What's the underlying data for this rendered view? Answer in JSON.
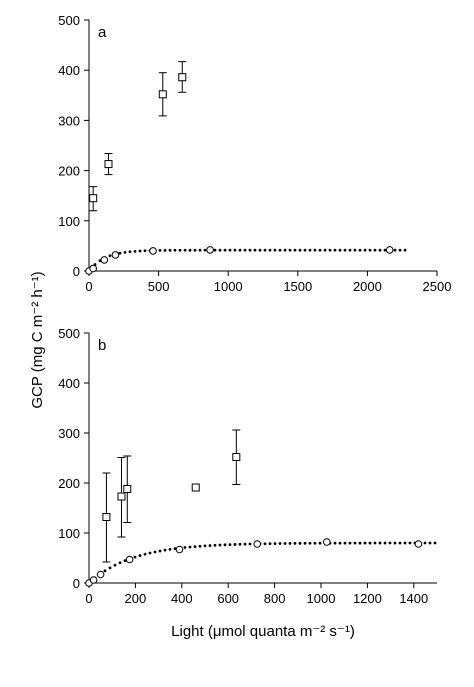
{
  "shared_ylabel": "GCP (mg C m⁻² h⁻¹)",
  "chart_data": [
    {
      "type": "scatter",
      "panel_label": "a",
      "xlabel": "",
      "ylabel": "GCP (mg C m⁻² h⁻¹)",
      "xlim": [
        0,
        2500
      ],
      "ylim": [
        0,
        500
      ],
      "x_ticks": [
        "0",
        "500",
        "1000",
        "1500",
        "2000",
        "2500"
      ],
      "y_ticks": [
        "0",
        "100",
        "200",
        "300",
        "400",
        "500"
      ],
      "grid": false,
      "series": [
        {
          "marker": "square",
          "points": [
            {
              "x": 30,
              "y": 145,
              "err_low": 120,
              "err_high": 168
            },
            {
              "x": 140,
              "y": 213,
              "err_low": 192,
              "err_high": 234
            },
            {
              "x": 530,
              "y": 352,
              "err_low": 309,
              "err_high": 395
            },
            {
              "x": 670,
              "y": 386,
              "err_low": 356,
              "err_high": 417
            }
          ]
        },
        {
          "marker": "circle",
          "points": [
            {
              "x": 0,
              "y": 0
            },
            {
              "x": 30,
              "y": 5
            },
            {
              "x": 110,
              "y": 22
            },
            {
              "x": 190,
              "y": 32
            },
            {
              "x": 460,
              "y": 40
            },
            {
              "x": 870,
              "y": 42
            },
            {
              "x": 2160,
              "y": 42
            }
          ]
        },
        {
          "marker": "dotted-fit",
          "pmax": 41.5,
          "k": 115,
          "x_max": 2280
        }
      ]
    },
    {
      "type": "scatter",
      "panel_label": "b",
      "xlabel": "Light (μmol quanta m⁻² s⁻¹)",
      "ylabel": "GCP (mg C m⁻² h⁻¹)",
      "xlim": [
        0,
        1500
      ],
      "ylim": [
        0,
        500
      ],
      "x_ticks": [
        "0",
        "200",
        "400",
        "600",
        "800",
        "1000",
        "1200",
        "1400"
      ],
      "y_ticks": [
        "0",
        "100",
        "200",
        "300",
        "400",
        "500"
      ],
      "grid": false,
      "series": [
        {
          "marker": "square",
          "points": [
            {
              "x": 75,
              "y": 132,
              "err_low": 42,
              "err_high": 220
            },
            {
              "x": 140,
              "y": 173,
              "err_low": 92,
              "err_high": 251
            },
            {
              "x": 165,
              "y": 188,
              "err_low": 121,
              "err_high": 254
            },
            {
              "x": 460,
              "y": 191
            },
            {
              "x": 635,
              "y": 252,
              "err_low": 197,
              "err_high": 306
            }
          ]
        },
        {
          "marker": "circle",
          "points": [
            {
              "x": 0,
              "y": 0
            },
            {
              "x": 20,
              "y": 6
            },
            {
              "x": 50,
              "y": 17
            },
            {
              "x": 175,
              "y": 47
            },
            {
              "x": 390,
              "y": 67
            },
            {
              "x": 725,
              "y": 78
            },
            {
              "x": 1025,
              "y": 82
            },
            {
              "x": 1420,
              "y": 78
            }
          ]
        },
        {
          "marker": "dotted-fit",
          "pmax": 80,
          "k": 190,
          "x_max": 1495
        }
      ]
    }
  ]
}
